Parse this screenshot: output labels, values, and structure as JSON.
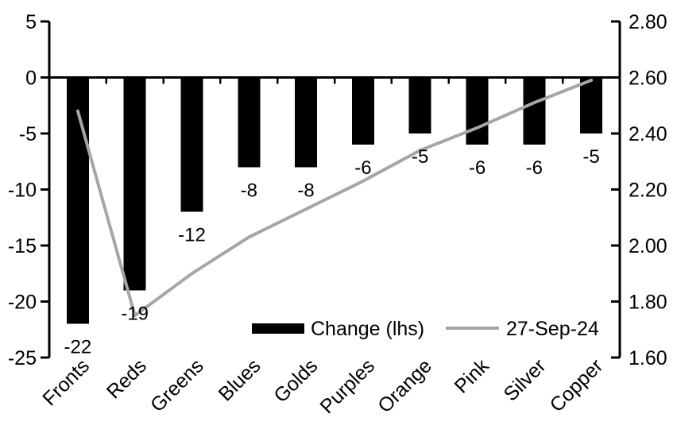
{
  "chart_data": {
    "type": "bar",
    "subtype": "bar+line dual-axis",
    "title": "",
    "categories": [
      "Fronts",
      "Reds",
      "Greens",
      "Blues",
      "Golds",
      "Purples",
      "Orange",
      "Pink",
      "Silver",
      "Copper"
    ],
    "series": [
      {
        "name": "Change (lhs)",
        "type": "bar",
        "axis": "left",
        "color": "#000000",
        "values": [
          -22,
          -19,
          -12,
          -8,
          -8,
          -6,
          -5,
          -6,
          -6,
          -5
        ],
        "data_labels": [
          "-22",
          "-19",
          "-12",
          "-8",
          "-8",
          "-6",
          "-5",
          "-6",
          "-6",
          "-5"
        ]
      },
      {
        "name": "27-Sep-24",
        "type": "line",
        "axis": "right",
        "color": "#a6a6a6",
        "values": [
          2.48,
          1.75,
          1.9,
          2.03,
          2.13,
          2.23,
          2.34,
          2.42,
          2.51,
          2.59
        ]
      }
    ],
    "left_axis": {
      "min": -25,
      "max": 5,
      "tick_labels": [
        "5",
        "0",
        "-5",
        "-10",
        "-15",
        "-20",
        "-25"
      ],
      "tick_values": [
        5,
        0,
        -5,
        -10,
        -15,
        -20,
        -25
      ]
    },
    "right_axis": {
      "min": 1.6,
      "max": 2.8,
      "tick_labels": [
        "2.80",
        "2.60",
        "2.40",
        "2.20",
        "2.00",
        "1.80",
        "1.60"
      ],
      "tick_values": [
        2.8,
        2.6,
        2.4,
        2.2,
        2.0,
        1.8,
        1.6
      ]
    },
    "grid": false,
    "legend_position": "inside-bottom",
    "background": "#ffffff",
    "axis_color": "#000000"
  }
}
